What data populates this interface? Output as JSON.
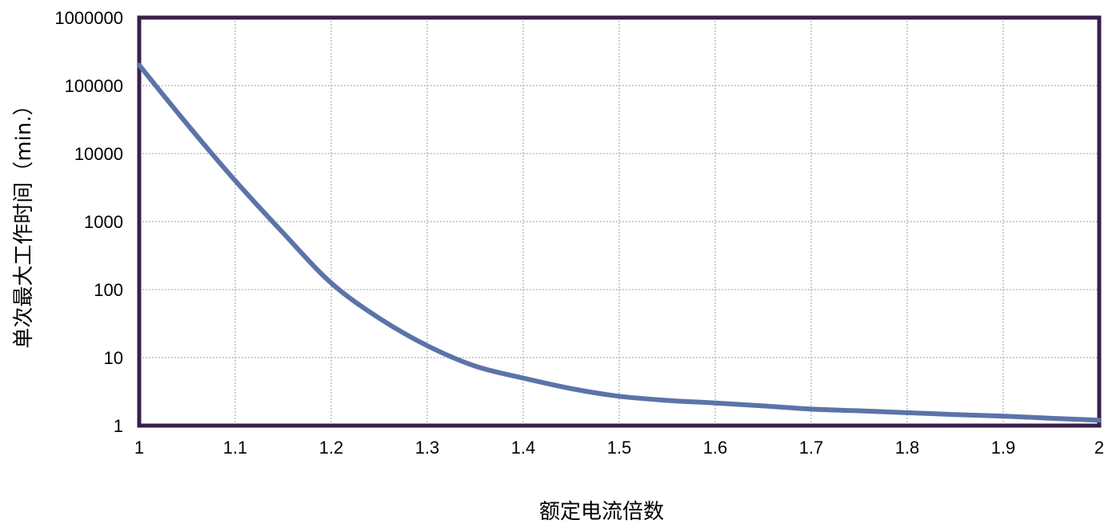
{
  "chart_data": {
    "type": "line",
    "title": "",
    "xlabel": "额定电流倍数",
    "ylabel": "单次最大工作时间（min.）",
    "x_scale": "linear",
    "y_scale": "log",
    "xlim": [
      1,
      2
    ],
    "ylim": [
      1,
      1000000
    ],
    "x_ticks": [
      1,
      1.1,
      1.2,
      1.3,
      1.4,
      1.5,
      1.6,
      1.7,
      1.8,
      1.9,
      2
    ],
    "x_tick_labels": [
      "1",
      "1.1",
      "1.2",
      "1.3",
      "1.4",
      "1.5",
      "1.6",
      "1.7",
      "1.8",
      "1.9",
      "2"
    ],
    "y_ticks": [
      1,
      10,
      100,
      1000,
      10000,
      100000,
      1000000
    ],
    "y_tick_labels": [
      "1",
      "10",
      "100",
      "1000",
      "10000",
      "100000",
      "1000000"
    ],
    "grid": true,
    "legend": "none",
    "series": [
      {
        "color": "#5b74a8",
        "x": [
          1.0,
          1.05,
          1.1,
          1.15,
          1.2,
          1.25,
          1.3,
          1.35,
          1.4,
          1.45,
          1.5,
          1.55,
          1.6,
          1.65,
          1.7,
          1.75,
          1.8,
          1.85,
          1.9,
          1.95,
          2.0
        ],
        "y": [
          200000,
          27000,
          4000,
          680,
          125,
          38,
          15,
          7.5,
          5,
          3.5,
          2.7,
          2.35,
          2.15,
          1.95,
          1.75,
          1.65,
          1.55,
          1.45,
          1.38,
          1.28,
          1.2
        ]
      }
    ],
    "colors": {
      "plot_border": "#3a1f4a",
      "grid": "#a0a0a0",
      "line": "#5b74a8"
    }
  }
}
